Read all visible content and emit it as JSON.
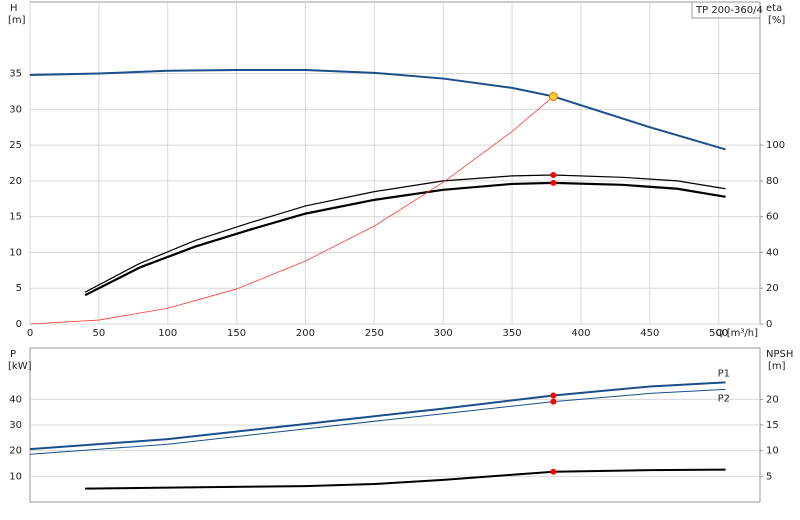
{
  "chart_data": [
    {
      "type": "line",
      "title": "TP 200-360/4",
      "ylabel": "H",
      "yunit": "[m]",
      "y2label": "eta",
      "y2unit": "[%]",
      "xlabel": "Q [m³/h]",
      "xlim": [
        0,
        530
      ],
      "xticks": [
        0,
        50,
        100,
        150,
        200,
        250,
        300,
        350,
        400,
        450,
        500
      ],
      "ylim": [
        0,
        45
      ],
      "yticks": [
        0,
        5,
        10,
        15,
        20,
        25,
        30,
        35
      ],
      "y2lim": [
        0,
        180
      ],
      "y2ticks": [
        0,
        20,
        40,
        60,
        80,
        100
      ],
      "grid": true,
      "operating_point_q": 380,
      "point_color": "#ff0000",
      "series": [
        {
          "color": "#1a4f8b",
          "width": 2,
          "axis": "y",
          "x": [
            0,
            50,
            100,
            150,
            200,
            250,
            300,
            350,
            380,
            450,
            505
          ],
          "values": [
            34.8,
            35.0,
            35.4,
            35.5,
            35.5,
            35.1,
            34.3,
            33.0,
            31.8,
            27.5,
            24.4
          ]
        },
        {
          "color": "#000000",
          "width": 1.2,
          "axis": "y2",
          "x": [
            40,
            80,
            120,
            160,
            200,
            250,
            300,
            350,
            380,
            430,
            470,
            505
          ],
          "values": [
            17.8,
            34,
            46.7,
            56.7,
            66,
            74,
            80,
            82.8,
            83.3,
            82,
            80,
            75.6
          ]
        },
        {
          "color": "#000000",
          "width": 2.2,
          "axis": "y2",
          "x": [
            40,
            80,
            120,
            160,
            200,
            250,
            300,
            350,
            380,
            430,
            470,
            505
          ],
          "values": [
            16.1,
            31.7,
            43.3,
            52.8,
            61.7,
            69.4,
            75,
            78.3,
            78.9,
            77.8,
            75.6,
            71.1
          ]
        },
        {
          "color": "#ff3b30",
          "width": 0.8,
          "axis": "y",
          "x": [
            0,
            50,
            100,
            150,
            200,
            250,
            300,
            350,
            380
          ],
          "values": [
            0,
            0.55,
            2.2,
            4.9,
            8.8,
            13.7,
            19.8,
            26.9,
            31.8
          ]
        }
      ]
    },
    {
      "type": "line",
      "ylabel": "P",
      "yunit": "[kW]",
      "y2label": "NPSH",
      "y2unit": "[m]",
      "xlim": [
        0,
        530
      ],
      "ylim": [
        0,
        60
      ],
      "yticks": [
        10,
        20,
        30,
        40
      ],
      "y2lim": [
        0,
        30
      ],
      "y2ticks": [
        5,
        10,
        15,
        20
      ],
      "grid": true,
      "operating_point_q": 380,
      "point_color": "#ff0000",
      "series": [
        {
          "name": "P1",
          "color": "#1a4f8b",
          "width": 2,
          "axis": "y",
          "x": [
            0,
            100,
            200,
            300,
            380,
            450,
            505
          ],
          "values": [
            20.6,
            24.5,
            30.4,
            36.4,
            41.5,
            45,
            46.6
          ]
        },
        {
          "name": "P2",
          "color": "#1a4f8b",
          "width": 1,
          "axis": "y",
          "x": [
            0,
            100,
            200,
            300,
            380,
            450,
            505
          ],
          "values": [
            18.6,
            22.5,
            28.5,
            34.4,
            39.1,
            42.3,
            43.9
          ]
        },
        {
          "color": "#000000",
          "width": 2,
          "axis": "y2",
          "x": [
            40,
            100,
            200,
            250,
            300,
            350,
            380,
            450,
            505
          ],
          "values": [
            2.6,
            2.8,
            3.1,
            3.5,
            4.3,
            5.3,
            5.9,
            6.2,
            6.3
          ]
        }
      ]
    }
  ]
}
